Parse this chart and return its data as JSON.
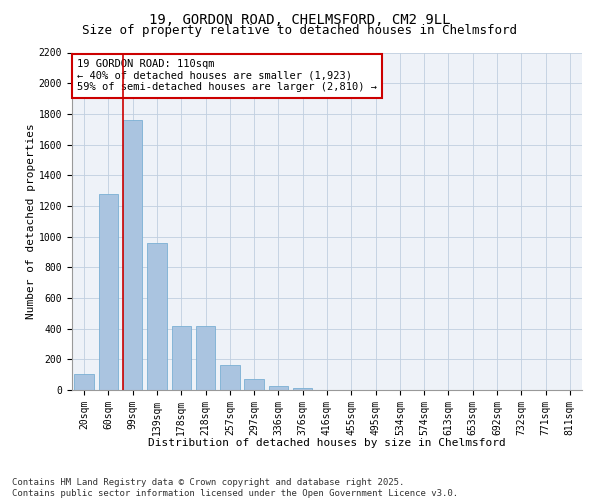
{
  "title1": "19, GORDON ROAD, CHELMSFORD, CM2 9LL",
  "title2": "Size of property relative to detached houses in Chelmsford",
  "xlabel": "Distribution of detached houses by size in Chelmsford",
  "ylabel": "Number of detached properties",
  "categories": [
    "20sqm",
    "60sqm",
    "99sqm",
    "139sqm",
    "178sqm",
    "218sqm",
    "257sqm",
    "297sqm",
    "336sqm",
    "376sqm",
    "416sqm",
    "455sqm",
    "495sqm",
    "534sqm",
    "574sqm",
    "613sqm",
    "653sqm",
    "692sqm",
    "732sqm",
    "771sqm",
    "811sqm"
  ],
  "values": [
    105,
    1280,
    1760,
    960,
    415,
    415,
    160,
    70,
    25,
    15,
    0,
    0,
    0,
    0,
    0,
    0,
    0,
    0,
    0,
    0,
    0
  ],
  "bar_color": "#aac4e0",
  "bar_edge_color": "#7aafd4",
  "highlight_line_color": "#cc0000",
  "annotation_line1": "19 GORDON ROAD: 110sqm",
  "annotation_line2": "← 40% of detached houses are smaller (1,923)",
  "annotation_line3": "59% of semi-detached houses are larger (2,810) →",
  "annotation_box_color": "#ffffff",
  "annotation_box_edge": "#cc0000",
  "ylim": [
    0,
    2200
  ],
  "yticks": [
    0,
    200,
    400,
    600,
    800,
    1000,
    1200,
    1400,
    1600,
    1800,
    2000,
    2200
  ],
  "background_color": "#eef2f8",
  "footer": "Contains HM Land Registry data © Crown copyright and database right 2025.\nContains public sector information licensed under the Open Government Licence v3.0.",
  "title1_fontsize": 10,
  "title2_fontsize": 9,
  "xlabel_fontsize": 8,
  "ylabel_fontsize": 8,
  "tick_fontsize": 7,
  "annot_fontsize": 7.5,
  "footer_fontsize": 6.5
}
